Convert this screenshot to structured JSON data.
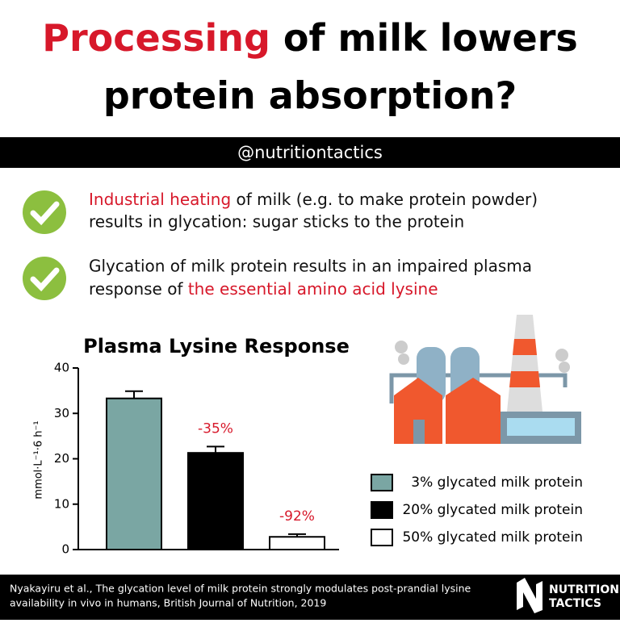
{
  "header": {
    "title_highlight": "Processing",
    "title_rest_line1": "of milk lowers",
    "title_line2": "protein absorption?",
    "handle": "@nutritiontactics"
  },
  "bullets": [
    {
      "highlight": "Industrial heating",
      "text_line1": "of milk (e.g. to make protein powder)",
      "text_line2": "results in glycation: sugar sticks to the protein"
    },
    {
      "text_line1": "Glycation of milk protein results in an impaired plasma",
      "text_line2": "response of",
      "highlight": "the essential amino acid lysine"
    }
  ],
  "chart_data": {
    "type": "bar",
    "title": "Plasma Lysine Response",
    "ylabel": "mmol·L⁻¹·6 h⁻¹",
    "categories": [
      "3% glycated milk protein",
      "20% glycated milk protein",
      "50% glycated milk protein"
    ],
    "values": [
      33.3,
      21.3,
      2.8
    ],
    "errors": [
      1.6,
      1.4,
      0.6
    ],
    "colors": [
      "#7aa6a3",
      "#000000",
      "#ffffff"
    ],
    "annotations": [
      null,
      "-35%",
      "-92%"
    ],
    "annotation_color": "#d7182a",
    "ylim": [
      0,
      40
    ],
    "yticks": [
      0,
      10,
      20,
      30,
      40
    ]
  },
  "footer": {
    "citation_line1": "Nyakayiru et al., The glycation level of milk protein strongly modulates post-prandial lysine",
    "citation_line2": "availability in vivo in humans, British Journal of Nutrition, 2019",
    "logo_line1": "NUTRITION",
    "logo_line2": "TACTICS"
  }
}
